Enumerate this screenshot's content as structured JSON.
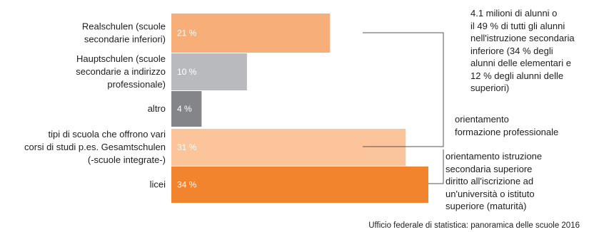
{
  "chart_data": {
    "type": "bar",
    "orientation": "horizontal",
    "categories": [
      "Realschulen (scuole\nsecondarie inferiori)",
      "Hauptschulen (scuole\nsecondarie a indirizzo\nprofessionale)",
      "altro",
      "tipi di scuola che offrono vari\ncorsi di studi p.es. Gesamtschulen\n(-scuole integrate-)",
      "licei"
    ],
    "values": [
      21,
      10,
      4,
      31,
      34
    ],
    "value_labels": [
      "21 %",
      "10 %",
      "4 %",
      "31 %",
      "34 %"
    ],
    "colors": [
      "#f8ae78",
      "#b9babd",
      "#848588",
      "#fbc49a",
      "#f1842d"
    ],
    "xlim": [
      0,
      34
    ],
    "grid": false,
    "legend": "none",
    "annotations": {
      "group_note": "4.1 milioni di alunni o\nil 49 % di tutti gli alunni\nnell'istruzione secondaria\ninferiore (34 % degli\nalunni delle elementari e\n12 % degli alunni delle\nsuperiori)",
      "vocational": "orientamento\nformazione professionale",
      "academic": "orientamento istruzione\nsecondaria superiore\ndiritto all'iscrizione ad\nun'università o istituto\nsuperiore (maturità)"
    }
  },
  "source": "Ufficio federale di statistica: panoramica delle scuole 2016"
}
